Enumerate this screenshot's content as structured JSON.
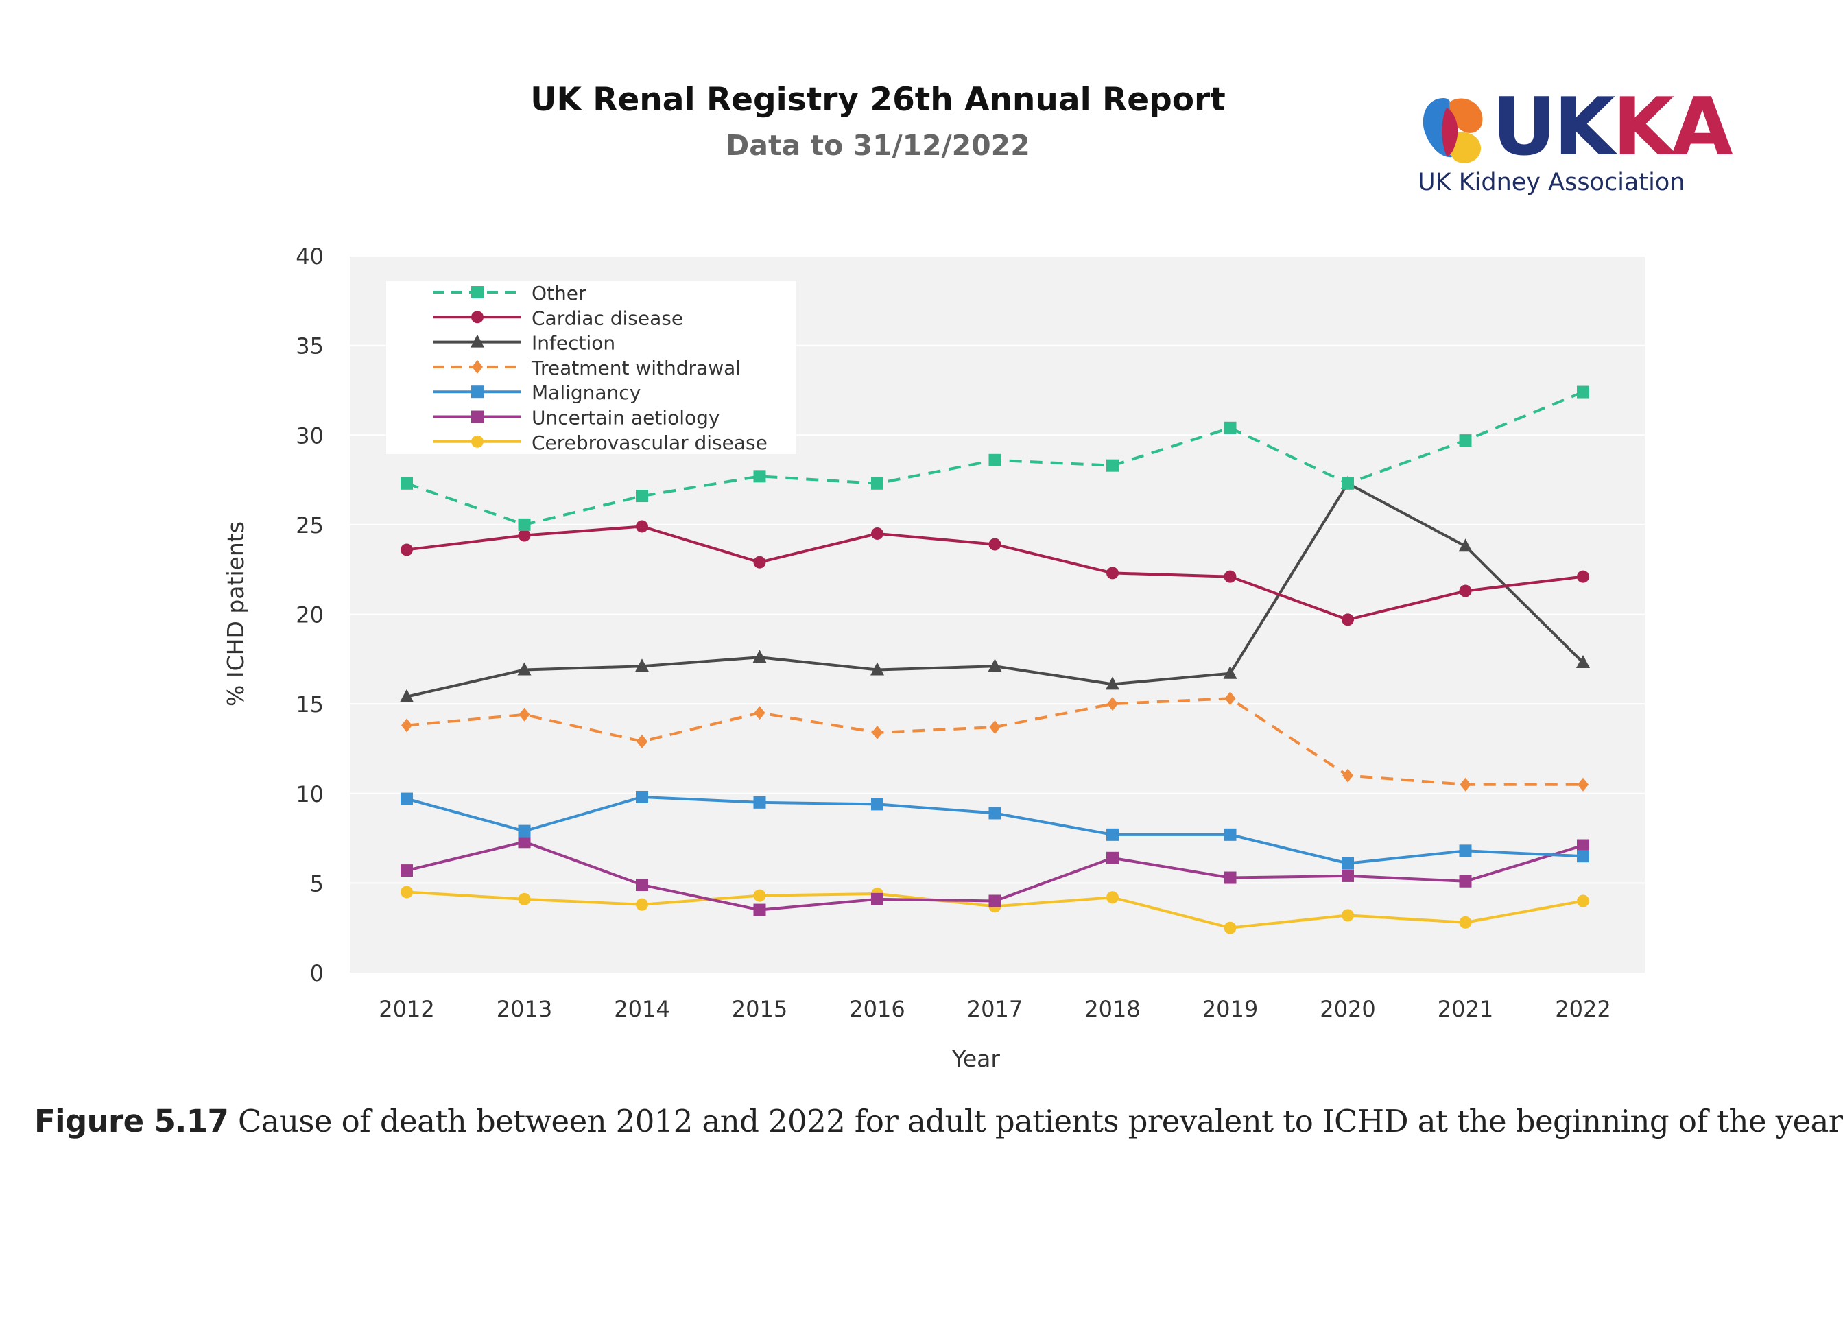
{
  "header": {
    "title": "UK Renal Registry 26th Annual Report",
    "subtitle": "Data to 31/12/2022"
  },
  "logo": {
    "wordmark_uk": "UK",
    "wordmark_ka": "KA",
    "tagline": "UK Kidney Association",
    "colors": {
      "navy": "#23357a",
      "magenta": "#c0244f",
      "blue": "#2f7fd0",
      "orange": "#f07a2c",
      "yellow": "#f5c12a"
    }
  },
  "chart_data": {
    "type": "line",
    "xlabel": "Year",
    "ylabel": "% ICHD patients",
    "ylim": [
      0,
      40
    ],
    "yticks": [
      0,
      5,
      10,
      15,
      20,
      25,
      30,
      35,
      40
    ],
    "grid": true,
    "legend_position": "top-left",
    "background": "#f2f2f2",
    "categories": [
      "2012",
      "2013",
      "2014",
      "2015",
      "2016",
      "2017",
      "2018",
      "2019",
      "2020",
      "2021",
      "2022"
    ],
    "series": [
      {
        "name": "Other",
        "color": "#2ebd8c",
        "dashed": true,
        "marker": "square",
        "values": [
          27.3,
          25.0,
          26.6,
          27.7,
          27.3,
          28.6,
          28.3,
          30.4,
          27.3,
          29.7,
          32.4
        ]
      },
      {
        "name": "Cardiac disease",
        "color": "#a8204e",
        "dashed": false,
        "marker": "circle",
        "values": [
          23.6,
          24.4,
          24.9,
          22.9,
          24.5,
          23.9,
          22.3,
          22.1,
          19.7,
          21.3,
          22.1
        ]
      },
      {
        "name": "Infection",
        "color": "#4a4a4a",
        "dashed": false,
        "marker": "triangle",
        "values": [
          15.4,
          16.9,
          17.1,
          17.6,
          16.9,
          17.1,
          16.1,
          16.7,
          27.3,
          23.8,
          17.3
        ]
      },
      {
        "name": "Treatment withdrawal",
        "color": "#f08a3c",
        "dashed": true,
        "marker": "diamond",
        "values": [
          13.8,
          14.4,
          12.9,
          14.5,
          13.4,
          13.7,
          15.0,
          15.3,
          11.0,
          10.5,
          10.5
        ]
      },
      {
        "name": "Malignancy",
        "color": "#3a8fd0",
        "dashed": false,
        "marker": "square",
        "values": [
          9.7,
          7.9,
          9.8,
          9.5,
          9.4,
          8.9,
          7.7,
          7.7,
          6.1,
          6.8,
          6.5
        ]
      },
      {
        "name": "Uncertain aetiology",
        "color": "#9c3a8c",
        "dashed": false,
        "marker": "square",
        "values": [
          5.7,
          7.3,
          4.9,
          3.5,
          4.1,
          4.0,
          6.4,
          5.3,
          5.4,
          5.1,
          7.1
        ]
      },
      {
        "name": "Cerebrovascular disease",
        "color": "#f5c12a",
        "dashed": false,
        "marker": "circle",
        "values": [
          4.5,
          4.1,
          3.8,
          4.3,
          4.4,
          3.7,
          4.2,
          2.5,
          3.2,
          2.8,
          4.0
        ]
      }
    ]
  },
  "caption": {
    "label": "Figure 5.17",
    "text": " Cause of death between 2012 and 2022 for adult patients prevalent to ICHD at the beginning of the year"
  }
}
